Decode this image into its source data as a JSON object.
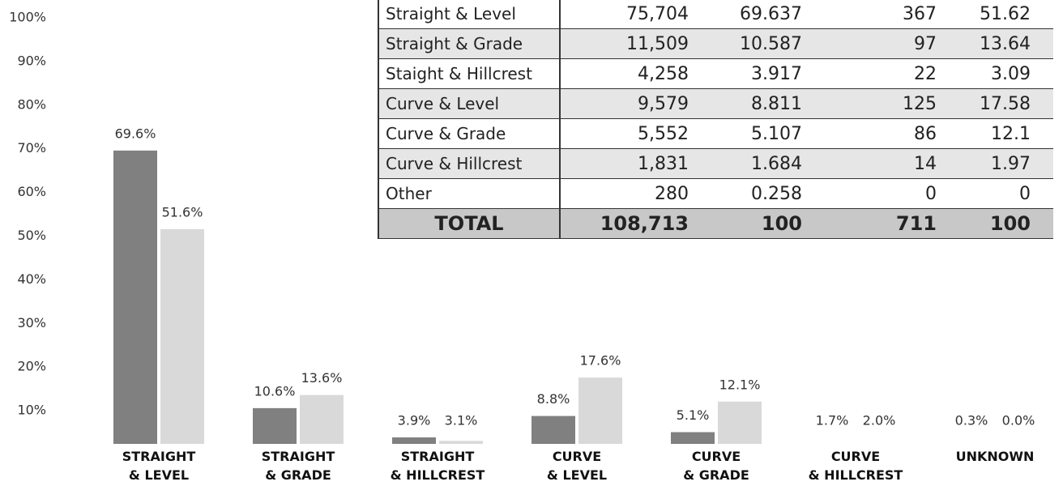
{
  "chart_data": {
    "type": "bar",
    "categories": [
      "STRAIGHT\n& LEVEL",
      "STRAIGHT\n& GRADE",
      "STRAIGHT\n& HILLCREST",
      "CURVE\n& LEVEL",
      "CURVE\n& GRADE",
      "CURVE\n& HILLCREST",
      "UNKNOWN"
    ],
    "series": [
      {
        "color": "#808080",
        "values": [
          69.6,
          10.6,
          3.9,
          8.8,
          5.1,
          1.7,
          0.3
        ],
        "value_labels": [
          "69.6%",
          "10.6%",
          "3.9%",
          "8.8%",
          "5.1%",
          "1.7%",
          "0.3%"
        ]
      },
      {
        "color": "#d9d9d9",
        "values": [
          51.6,
          13.6,
          3.1,
          17.6,
          12.1,
          2.0,
          0.0
        ],
        "value_labels": [
          "51.6%",
          "13.6%",
          "3.1%",
          "17.6%",
          "12.1%",
          "2.0%",
          "0.0%"
        ]
      }
    ],
    "ylim": [
      0,
      100
    ],
    "yticks": [
      {
        "value": 10,
        "label": "10%"
      },
      {
        "value": 20,
        "label": "20%"
      },
      {
        "value": 30,
        "label": "30%"
      },
      {
        "value": 40,
        "label": "40%"
      },
      {
        "value": 50,
        "label": "50%"
      },
      {
        "value": 60,
        "label": "60%"
      },
      {
        "value": 70,
        "label": "70%"
      },
      {
        "value": 80,
        "label": "80%"
      },
      {
        "value": 90,
        "label": "90%"
      },
      {
        "value": 100,
        "label": "100%"
      }
    ],
    "grid": false
  },
  "table": {
    "rows": [
      [
        "Straight & Level",
        "75,704",
        "69.637",
        "367",
        "51.62"
      ],
      [
        "Straight & Grade",
        "11,509",
        "10.587",
        "97",
        "13.64"
      ],
      [
        "Staight & Hillcrest",
        "4,258",
        "3.917",
        "22",
        "3.09"
      ],
      [
        "Curve & Level",
        "9,579",
        "8.811",
        "125",
        "17.58"
      ],
      [
        "Curve & Grade",
        "5,552",
        "5.107",
        "86",
        "12.1"
      ],
      [
        "Curve & Hillcrest",
        "1,831",
        "1.684",
        "14",
        "1.97"
      ],
      [
        "Other",
        "280",
        "0.258",
        "0",
        "0"
      ],
      [
        "TOTAL",
        "108,713",
        "100",
        "711",
        "100"
      ]
    ]
  }
}
